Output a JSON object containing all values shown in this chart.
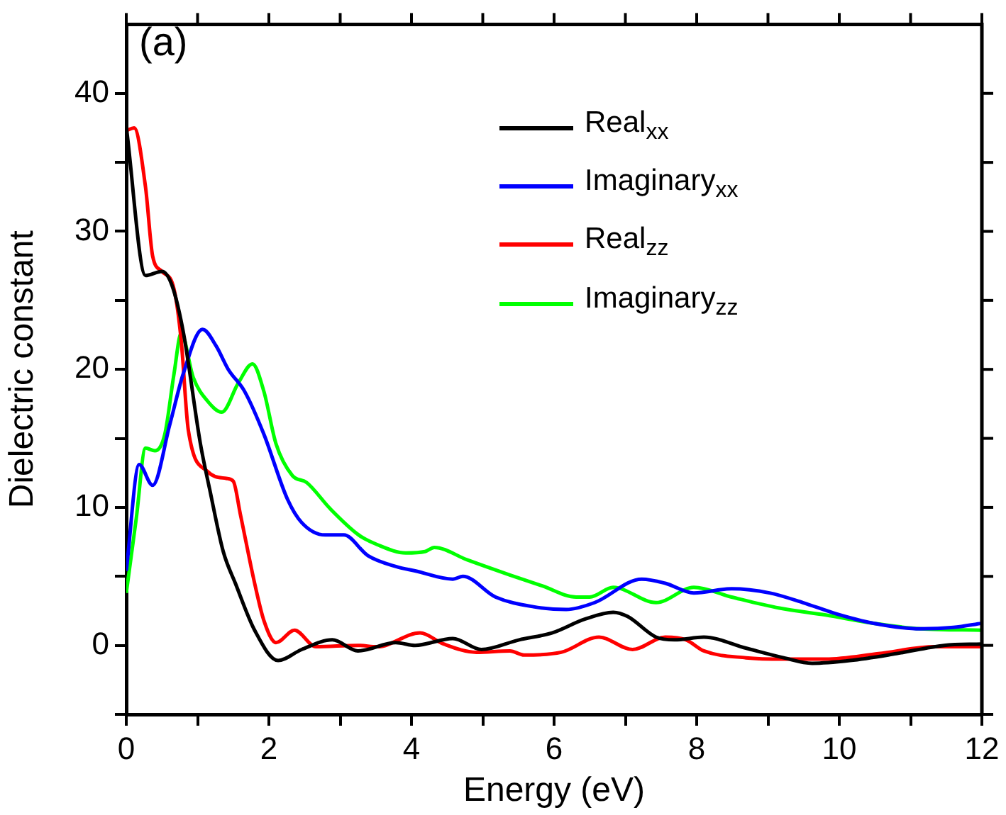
{
  "chart_data": {
    "type": "line",
    "xlabel": "Energy (eV)",
    "ylabel": "Dielectric constant",
    "annotations": [
      "(a)"
    ],
    "xlim": [
      0,
      12
    ],
    "xticks": [
      0,
      {
        "value": 1,
        "label": null
      },
      2,
      {
        "value": 3,
        "label": null
      },
      4,
      {
        "value": 5,
        "label": null
      },
      6,
      {
        "value": 7,
        "label": null
      },
      8,
      {
        "value": 9,
        "label": null
      },
      10,
      {
        "value": 11,
        "label": null
      },
      12
    ],
    "ylim": [
      -5,
      45
    ],
    "yticks": [
      {
        "value": -5,
        "label": null
      },
      0,
      {
        "value": 5,
        "label": null
      },
      10,
      {
        "value": 15,
        "label": null
      },
      20,
      {
        "value": 25,
        "label": null
      },
      30,
      {
        "value": 35,
        "label": null
      },
      40
    ],
    "grid": false,
    "legend": "top right",
    "marker": "none",
    "line_style": "solid",
    "series": [
      {
        "name": "Real$_{xx}$",
        "color": "#000000",
        "x": [
          0,
          0.27,
          0.5,
          0.64,
          0.8,
          1.04,
          1.17,
          1.36,
          1.53,
          1.8,
          2.13,
          2.46,
          2.89,
          3.25,
          3.78,
          4.05,
          4.58,
          4.98,
          5.51,
          5.97,
          6.43,
          6.83,
          7.03,
          7.43,
          7.69,
          8.1,
          8.69,
          9.22,
          9.62,
          10.15,
          10.8,
          11.47,
          12
        ],
        "values": [
          37.6,
          26.8,
          27.1,
          26.1,
          22.7,
          14.6,
          11.3,
          6.8,
          4.5,
          1.1,
          -1.1,
          -0.3,
          0.4,
          -0.4,
          0.2,
          0,
          0.5,
          -0.3,
          0.4,
          0.9,
          1.9,
          2.4,
          2.1,
          0.6,
          0.4,
          0.6,
          -0.2,
          -0.9,
          -1.3,
          -1.1,
          -0.6,
          0,
          0.1
        ]
      },
      {
        "name": "Imaginary$_{xx}$",
        "color": "#0000ff",
        "x": [
          0,
          0.18,
          0.37,
          0.61,
          0.8,
          1.07,
          1.26,
          1.43,
          1.66,
          1.93,
          2.26,
          2.46,
          2.79,
          3.05,
          3.39,
          3.79,
          4.05,
          4.58,
          4.72,
          5.18,
          5.71,
          6.17,
          6.57,
          7.23,
          7.56,
          7.96,
          8.49,
          9.02,
          9.49,
          9.95,
          10.48,
          11.14,
          11.6,
          12
        ],
        "values": [
          5.4,
          13.1,
          11.6,
          16,
          19.7,
          22.9,
          21.7,
          20,
          18.4,
          15.3,
          10.6,
          8.9,
          8,
          8,
          6.5,
          5.7,
          5.4,
          4.8,
          5,
          3.5,
          2.8,
          2.6,
          3.1,
          4.8,
          4.5,
          3.8,
          4.1,
          3.8,
          3.1,
          2.3,
          1.6,
          1.2,
          1.3,
          1.6
        ]
      },
      {
        "name": "Real$_{zz}$",
        "color": "#ff0000",
        "x": [
          0,
          0.11,
          0.27,
          0.37,
          0.5,
          0.67,
          0.77,
          0.87,
          1.14,
          1.4,
          1.5,
          1.6,
          1.8,
          1.93,
          2.1,
          2.36,
          2.66,
          3.25,
          3.52,
          4.12,
          4.45,
          4.91,
          5.38,
          5.58,
          6.1,
          6.63,
          7.1,
          7.56,
          7.85,
          8.1,
          8.69,
          9.22,
          9.81,
          10.55,
          11.34,
          12
        ],
        "values": [
          37.3,
          37.5,
          33.2,
          28.2,
          27.1,
          25.8,
          22.1,
          15.6,
          12.6,
          12.1,
          11.9,
          9.5,
          4.5,
          1.8,
          0.2,
          1.1,
          -0.1,
          0,
          -0.1,
          0.9,
          0.1,
          -0.5,
          -0.4,
          -0.7,
          -0.5,
          0.6,
          -0.3,
          0.6,
          0.4,
          -0.4,
          -0.9,
          -1,
          -1,
          -0.6,
          -0.1,
          -0.1
        ]
      },
      {
        "name": "Imaginary$_{zz}$",
        "color": "#00ff00",
        "x": [
          0,
          0.14,
          0.27,
          0.4,
          0.54,
          0.67,
          0.77,
          0.94,
          1.14,
          1.34,
          1.57,
          1.77,
          1.93,
          2.1,
          2.33,
          2.53,
          2.86,
          3.26,
          3.52,
          3.92,
          4.19,
          4.32,
          4.78,
          5.38,
          5.84,
          6.31,
          6.5,
          6.83,
          7.43,
          7.96,
          8.49,
          9.16,
          9.81,
          10.48,
          11.14,
          12
        ],
        "values": [
          3.8,
          9.2,
          14.3,
          14.1,
          15.3,
          19.7,
          22.6,
          19.4,
          17.7,
          16.9,
          19,
          20.4,
          18.4,
          14.6,
          12.3,
          11.8,
          9.9,
          8,
          7.3,
          6.7,
          6.8,
          7.1,
          6.2,
          5.1,
          4.3,
          3.5,
          3.5,
          4.2,
          3.1,
          4.2,
          3.5,
          2.7,
          2.2,
          1.6,
          1.2,
          1.1
        ]
      }
    ]
  }
}
